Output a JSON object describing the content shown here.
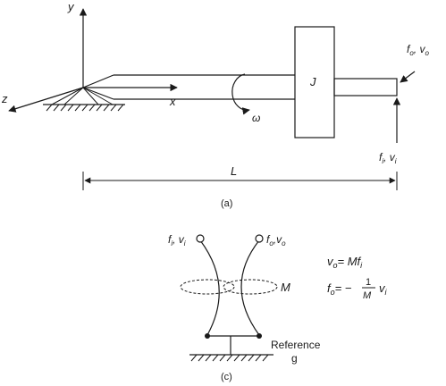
{
  "top": {
    "y_axis": "y",
    "x_axis": "x",
    "z_axis": "z",
    "omega": "ω",
    "inertia": "J",
    "dim_length": "L",
    "caption": "(a)",
    "out": {
      "f": "f",
      "f_sub": "o",
      "v": "v",
      "v_sub": "o"
    },
    "in": {
      "f": "f",
      "f_sub": "i",
      "v": "v",
      "v_sub": "i"
    }
  },
  "bottom": {
    "caption": "(c)",
    "node_left": {
      "f": "f",
      "f_sub": "i",
      "v": "v",
      "v_sub": "i"
    },
    "node_right": {
      "f": "f",
      "f_sub": "o",
      "v": "v",
      "v_sub": "o"
    },
    "coupling": "M",
    "reference": "Reference",
    "ground_node": "g",
    "eq1": {
      "lhs": "v",
      "lhs_sub": "o",
      "rhs": "= Mf",
      "rhs_sub": "i"
    },
    "eq2": {
      "lhs": "f",
      "lhs_sub": "o",
      "op": "= −",
      "num": "1",
      "den": "M",
      "v": "v",
      "v_sub": "i"
    }
  }
}
